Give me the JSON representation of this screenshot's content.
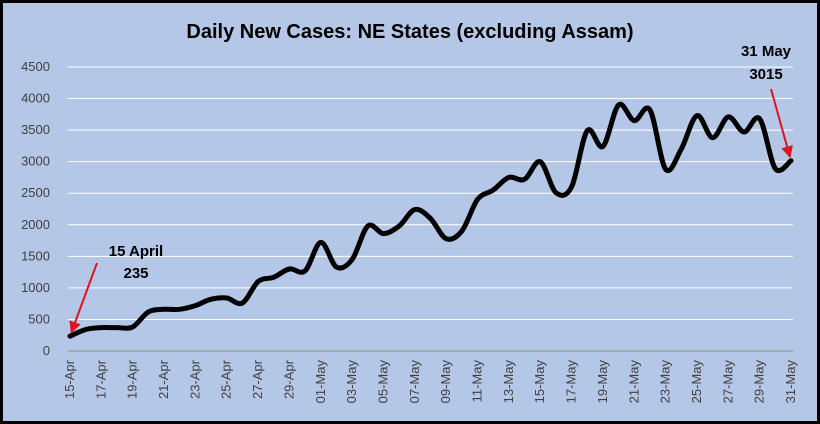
{
  "chart_data": {
    "type": "line",
    "title": "Daily New Cases: NE States (excluding Assam)",
    "xlabel": "",
    "ylabel": "",
    "ylim": [
      0,
      4500
    ],
    "yticks": [
      "0",
      "500",
      "1000",
      "1500",
      "2000",
      "2500",
      "3000",
      "3500",
      "4000",
      "4500"
    ],
    "grid": true,
    "legend": "none",
    "x_tick_labels": [
      "15-Apr",
      "17-Apr",
      "19-Apr",
      "21-Apr",
      "23-Apr",
      "25-Apr",
      "27-Apr",
      "29-Apr",
      "01-May",
      "03-May",
      "05-May",
      "07-May",
      "09-May",
      "11-May",
      "13-May",
      "15-May",
      "17-May",
      "19-May",
      "21-May",
      "23-May",
      "25-May",
      "27-May",
      "29-May",
      "31-May"
    ],
    "x": [
      "15-Apr",
      "16-Apr",
      "17-Apr",
      "18-Apr",
      "19-Apr",
      "20-Apr",
      "21-Apr",
      "22-Apr",
      "23-Apr",
      "24-Apr",
      "25-Apr",
      "26-Apr",
      "27-Apr",
      "28-Apr",
      "29-Apr",
      "30-Apr",
      "01-May",
      "02-May",
      "03-May",
      "04-May",
      "05-May",
      "06-May",
      "07-May",
      "08-May",
      "09-May",
      "10-May",
      "11-May",
      "12-May",
      "13-May",
      "14-May",
      "15-May",
      "16-May",
      "17-May",
      "18-May",
      "19-May",
      "20-May",
      "21-May",
      "22-May",
      "23-May",
      "24-May",
      "25-May",
      "26-May",
      "27-May",
      "28-May",
      "29-May",
      "30-May",
      "31-May"
    ],
    "series": [
      {
        "values": [
          235,
          340,
          370,
          370,
          380,
          620,
          660,
          660,
          720,
          820,
          840,
          760,
          1100,
          1170,
          1300,
          1270,
          1720,
          1330,
          1450,
          1980,
          1860,
          1980,
          2240,
          2100,
          1780,
          1900,
          2400,
          2550,
          2750,
          2720,
          3000,
          2510,
          2600,
          3490,
          3240,
          3900,
          3650,
          3820,
          2880,
          3200,
          3730,
          3380,
          3710,
          3470,
          3680,
          2890,
          3015
        ]
      }
    ],
    "line_color": "#000000",
    "annotations": [
      {
        "line1": "15 April",
        "line2": "235",
        "arrow_color": "#e0141e",
        "target_index": 0
      },
      {
        "line1": "31 May",
        "line2": "3015",
        "arrow_color": "#e0141e",
        "target_index": 46
      }
    ],
    "background_color": "#b4c7e7",
    "grid_color": "#ffffff"
  }
}
